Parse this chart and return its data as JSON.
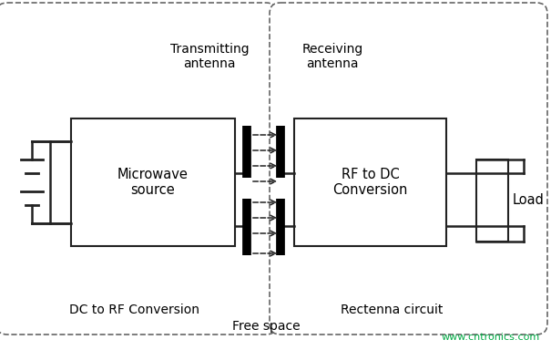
{
  "bg_color": "#ffffff",
  "border_color": "#222222",
  "text_color": "#000000",
  "dashed_border_color": "#666666",
  "arrow_color": "#222222",
  "watermark_color": "#00aa44",
  "watermark_text": "www.cntronics.com",
  "labels": {
    "transmitting_antenna": "Transmitting\nantenna",
    "receiving_antenna": "Receiving\nantenna",
    "microwave_source": "Microwave\nsource",
    "rf_to_dc": "RF to DC\nConversion",
    "dc_to_rf": "DC to RF Conversion",
    "free_space": "Free space",
    "rectenna": "Rectenna circuit",
    "load": "Load"
  },
  "figsize": [
    6.05,
    3.84
  ],
  "dpi": 100
}
